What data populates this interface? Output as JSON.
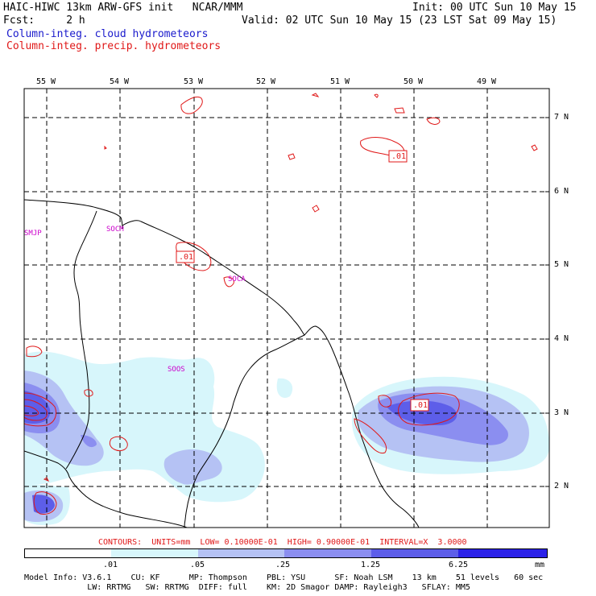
{
  "header": {
    "left_line1": "HAIC-HIWC 13km ARW-GFS init   NCAR/MMM",
    "left_line2": "Fcst:     2 h",
    "right_line1": "Init: 00 UTC Sun 10 May 15",
    "right_line2": "Valid: 02 UTC Sun 10 May 15 (23 LST Sat 09 May 15)",
    "legend_cloud": "Column-integ. cloud hydrometeors",
    "legend_precip": "Column-integ. precip. hydrometeors"
  },
  "lon_ticks": [
    "55 W",
    "54 W",
    "53 W",
    "52 W",
    "51 W",
    "50 W",
    "49 W"
  ],
  "lat_ticks": [
    "7 N",
    "6 N",
    "5 N",
    "4 N",
    "3 N",
    "2 N"
  ],
  "station_labels": [
    "SMJP",
    "SOCM",
    "SOCA",
    "SOOS"
  ],
  "contour_labels": [
    ".01",
    ".01",
    ".01"
  ],
  "contours_info": "CONTOURS:  UNITS=mm  LOW= 0.10000E-01  HIGH= 0.90000E-01  INTERVAL=X  3.0000",
  "colorbar": {
    "labels": [
      ".01",
      ".05",
      ".25",
      "1.25",
      "6.25"
    ],
    "units": "mm",
    "colors": [
      "#ffffff",
      "#d7f6fb",
      "#b5c2f4",
      "#8b8ef0",
      "#5d5ee9",
      "#2b22e8"
    ]
  },
  "model_info": {
    "line1": "Model Info: V3.6.1    CU: KF      MP: Thompson    PBL: YSU      SF: Noah LSM    13 km    51 levels   60 sec",
    "line2": "             LW: RRTMG   SW: RRTMG  DIFF: full    KM: 2D Smagor DAMP: Rayleigh3   SFLAY: MM5"
  }
}
